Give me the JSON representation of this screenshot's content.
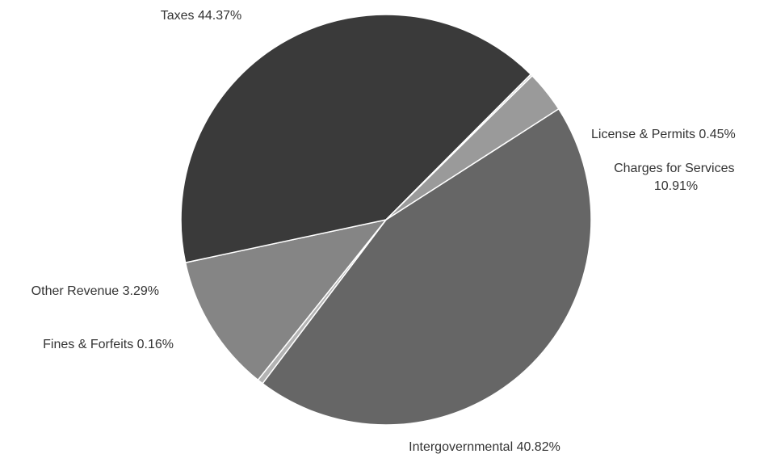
{
  "chart_data": {
    "type": "pie",
    "title": "",
    "series": [
      {
        "name": "",
        "slices": [
          {
            "label": "Taxes 44.37%",
            "category": "Taxes",
            "value": 44.37,
            "color": "#666666"
          },
          {
            "label": "License & Permits 0.45%",
            "category": "License & Permits",
            "value": 0.45,
            "color": "#b3b3b3"
          },
          {
            "label": "Charges for Services 10.91%",
            "category": "Charges for Services",
            "value": 10.91,
            "color": "#858585"
          },
          {
            "label": "Intergovernmental 40.82%",
            "category": "Intergovernmental",
            "value": 40.82,
            "color": "#3a3a3a"
          },
          {
            "label": "Fines & Forfeits 0.16%",
            "category": "Fines & Forfeits",
            "value": 0.16,
            "color": "#cfcfcf"
          },
          {
            "label": "Other Revenue 3.29%",
            "category": "Other Revenue",
            "value": 3.29,
            "color": "#9a9a9a"
          }
        ]
      }
    ],
    "legend": "none",
    "labels_position": "outside"
  }
}
